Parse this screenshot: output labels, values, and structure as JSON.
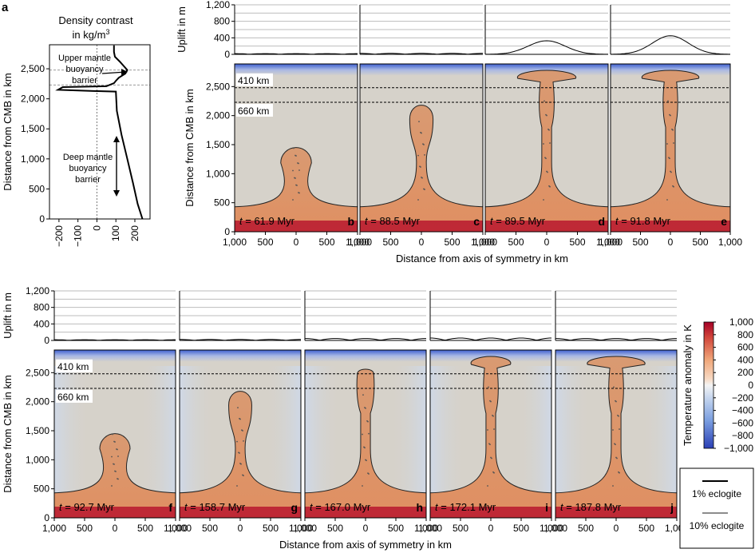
{
  "panel_letters": [
    "a",
    "b",
    "c",
    "d",
    "e",
    "f",
    "g",
    "h",
    "i",
    "j"
  ],
  "colors": {
    "plume": "#d9936b",
    "ambient": "#d6d2ca",
    "cold": "#3c5ecf",
    "hot_bottom": "#a80a2a",
    "outline_1pct": "#000000",
    "outline_10pct": "#8c8c8c"
  },
  "chart_data": [
    {
      "type": "line",
      "panel": "a",
      "title": "Density contrast in kg/m3",
      "xlabel": "",
      "ylabel": "Distance from CMB in km",
      "xlim": [
        -250,
        280
      ],
      "ylim": [
        0,
        2900
      ],
      "x_ticks": [
        "−200",
        "−100",
        "0",
        "100",
        "200"
      ],
      "y_ticks": [
        "0",
        "500",
        "1,000",
        "1,500",
        "2,000",
        "2,500"
      ],
      "annotations": [
        "Upper mantle buoyancy barrier",
        "Deep mantle buoyancy barrier"
      ],
      "series": [
        {
          "x": [
            90,
            90,
            95,
            120,
            160,
            150,
            115,
            100,
            90,
            50,
            -180,
            -205,
            -20,
            100,
            105,
            130,
            160,
            190,
            215,
            240
          ],
          "y": [
            2890,
            2780,
            2700,
            2620,
            2480,
            2420,
            2350,
            2300,
            2260,
            2210,
            2195,
            2150,
            2130,
            2120,
            1800,
            1400,
            1000,
            600,
            250,
            0
          ]
        }
      ]
    },
    {
      "type": "heatmap",
      "panels": [
        {
          "letter": "b",
          "time": "61.9 Myr",
          "uplift_peak": 20,
          "plume_top": 1450
        },
        {
          "letter": "c",
          "time": "88.5 Myr",
          "uplift_peak": 30,
          "plume_top": 2200
        },
        {
          "letter": "d",
          "time": "89.5 Myr",
          "uplift_peak": 330,
          "plume_top": 2780
        },
        {
          "letter": "e",
          "time": "91.8 Myr",
          "uplift_peak": 450,
          "plume_top": 2780
        },
        {
          "letter": "f",
          "time": "92.7 Myr",
          "uplift_peak": 20,
          "plume_top": 1450
        },
        {
          "letter": "g",
          "time": "158.7 Myr",
          "uplift_peak": 30,
          "plume_top": 2200
        },
        {
          "letter": "h",
          "time": "167.0 Myr",
          "uplift_peak": 70,
          "plume_top": 2560
        },
        {
          "letter": "i",
          "time": "172.1 Myr",
          "uplift_peak": 90,
          "plume_top": 2780
        },
        {
          "letter": "j",
          "time": "187.8 Myr",
          "uplift_peak": 70,
          "plume_top": 2780
        }
      ],
      "uplift_ylabel": "Uplift in m",
      "uplift_ticks": [
        "0",
        "400",
        "800",
        "1,200"
      ],
      "uplift_ylim": [
        0,
        1200
      ],
      "depth_ylabel": "Distance from CMB in km",
      "depth_ticks": [
        "0",
        "500",
        "1,000",
        "1,500",
        "2,000",
        "2,500"
      ],
      "depth_ylim": [
        0,
        2890
      ],
      "x_ticks": [
        "1,000",
        "500",
        "0",
        "500",
        "1,000"
      ],
      "xlabel": "Distance from axis of symmetry in km",
      "xlim": [
        -1000,
        1000
      ],
      "discontinuities": [
        {
          "label": "410 km",
          "height": 2480
        },
        {
          "label": "660 km",
          "height": 2230
        }
      ],
      "time_prefix": "t ="
    }
  ],
  "colorbar": {
    "label": "Temperature anomaly in K",
    "ticks": [
      "1,000",
      "800",
      "600",
      "400",
      "200",
      "0",
      "−200",
      "−400",
      "−600",
      "−800",
      "−1,000"
    ],
    "range": [
      -1000,
      1000
    ]
  },
  "legend": {
    "items": [
      {
        "label": "1% eclogite",
        "color": "#000000"
      },
      {
        "label": "10% eclogite",
        "color": "#8c8c8c"
      }
    ]
  }
}
